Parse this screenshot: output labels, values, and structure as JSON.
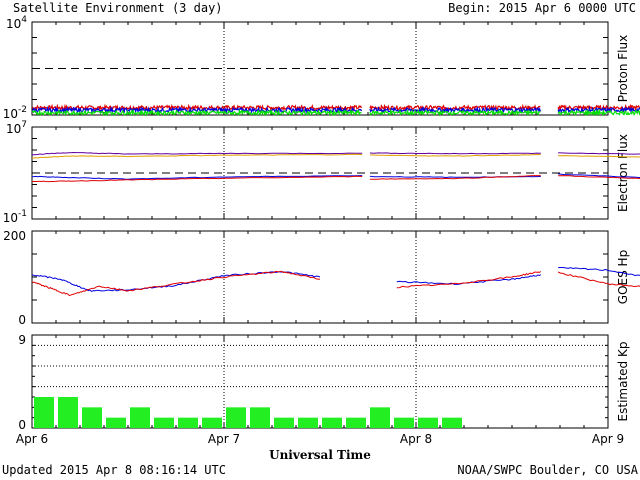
{
  "header": {
    "title": "Satellite Environment (3 day)",
    "begin": "Begin:  2015 Apr 6 0000 UTC"
  },
  "footer": {
    "updated": "Updated 2015 Apr  8 08:16:14 UTC",
    "credit": "NOAA/SWPC Boulder, CO USA"
  },
  "x_axis": {
    "label": "Universal Time",
    "ticks": [
      "Apr 6",
      "Apr 7",
      "Apr 8",
      "Apr 9"
    ]
  },
  "colors": {
    "red": "#e00000",
    "blue": "#0000e0",
    "green": "#00e000",
    "orange": "#e0a000",
    "purple": "#6000a0",
    "kp_bar": "#22ee22"
  },
  "chart_data": [
    {
      "type": "line",
      "name": "proton-flux",
      "ylabel": "Proton Flux",
      "yscale": "log",
      "ylim": [
        0.01,
        10000
      ],
      "yticks": [
        {
          "base": "10",
          "exp": "4"
        },
        {
          "base": "10",
          "exp": "-2"
        }
      ],
      "threshold": 10,
      "x_unit": "days since Apr 6 0000 UTC",
      "segments": [
        [
          0,
          1.72
        ],
        [
          1.76,
          2.65
        ],
        [
          2.74,
          3.35
        ]
      ],
      "series": [
        {
          "color": "red",
          "level": 0.03
        },
        {
          "color": "blue",
          "level": 0.021
        },
        {
          "color": "green",
          "level": 0.014
        }
      ]
    },
    {
      "type": "line",
      "name": "electron-flux",
      "ylabel": "Electron Flux",
      "yscale": "log",
      "ylim": [
        0.1,
        10000000
      ],
      "yticks": [
        {
          "base": "10",
          "exp": "7"
        },
        {
          "base": "10",
          "exp": "-1"
        }
      ],
      "threshold": 1000,
      "segments": [
        [
          0,
          1.72
        ],
        [
          1.76,
          2.65
        ],
        [
          2.74,
          3.35
        ]
      ],
      "series": [
        {
          "color": "purple",
          "points": [
            [
              0,
              40000
            ],
            [
              0.2,
              60000
            ],
            [
              0.5,
              45000
            ],
            [
              1,
              50000
            ],
            [
              1.72,
              52000
            ],
            [
              1.76,
              55000
            ],
            [
              2.2,
              48000
            ],
            [
              2.65,
              52000
            ],
            [
              2.74,
              55000
            ],
            [
              3.35,
              40000
            ]
          ]
        },
        {
          "color": "orange",
          "points": [
            [
              0,
              20000
            ],
            [
              0.2,
              30000
            ],
            [
              0.5,
              28000
            ],
            [
              1,
              35000
            ],
            [
              1.72,
              40000
            ],
            [
              1.76,
              35000
            ],
            [
              2.2,
              30000
            ],
            [
              2.65,
              40000
            ],
            [
              2.74,
              32000
            ],
            [
              3.35,
              22000
            ]
          ]
        },
        {
          "color": "blue",
          "points": [
            [
              0,
              500
            ],
            [
              0.2,
              400
            ],
            [
              0.5,
              300
            ],
            [
              1,
              450
            ],
            [
              1.72,
              600
            ],
            [
              1.76,
              500
            ],
            [
              2.2,
              420
            ],
            [
              2.65,
              500
            ],
            [
              2.74,
              800
            ],
            [
              3.35,
              300
            ]
          ]
        },
        {
          "color": "red",
          "points": [
            [
              0,
              180
            ],
            [
              0.2,
              200
            ],
            [
              0.5,
              250
            ],
            [
              1,
              350
            ],
            [
              1.72,
              500
            ],
            [
              1.76,
              300
            ],
            [
              2.2,
              330
            ],
            [
              2.65,
              600
            ],
            [
              2.74,
              600
            ],
            [
              3.35,
              250
            ]
          ]
        }
      ]
    },
    {
      "type": "line",
      "name": "goes-hp",
      "ylabel": "GOES Hp",
      "ylim": [
        0,
        200
      ],
      "yticks": [
        "200",
        "0"
      ],
      "segments": [
        [
          0,
          1.72
        ],
        [
          1.76,
          2.65
        ],
        [
          2.74,
          3.35
        ]
      ],
      "series": [
        {
          "color": "blue",
          "points": [
            [
              0,
              105
            ],
            [
              0.15,
              95
            ],
            [
              0.3,
              70
            ],
            [
              0.5,
              72
            ],
            [
              0.75,
              82
            ],
            [
              1.0,
              103
            ],
            [
              1.3,
              112
            ],
            [
              1.5,
              100
            ],
            [
              1.9,
              90
            ],
            [
              2.2,
              85
            ],
            [
              2.5,
              95
            ],
            [
              2.65,
              105
            ],
            [
              2.74,
              120
            ],
            [
              3.0,
              115
            ],
            [
              3.35,
              88
            ]
          ]
        },
        {
          "color": "red",
          "points": [
            [
              0,
              90
            ],
            [
              0.1,
              75
            ],
            [
              0.2,
              60
            ],
            [
              0.35,
              80
            ],
            [
              0.5,
              70
            ],
            [
              0.75,
              85
            ],
            [
              1.0,
              100
            ],
            [
              1.3,
              112
            ],
            [
              1.5,
              95
            ],
            [
              1.9,
              78
            ],
            [
              2.2,
              85
            ],
            [
              2.5,
              100
            ],
            [
              2.65,
              112
            ],
            [
              2.74,
              110
            ],
            [
              3.0,
              85
            ],
            [
              3.2,
              78
            ],
            [
              3.35,
              88
            ]
          ]
        }
      ]
    },
    {
      "type": "bar",
      "name": "estimated-kp",
      "ylabel": "Estimated Kp",
      "ylim": [
        0,
        9
      ],
      "yticks": [
        "9",
        "0"
      ],
      "gridlines": [
        4,
        6,
        8
      ],
      "bar_width_days": 0.125,
      "values": [
        3,
        3,
        2,
        1,
        2,
        1,
        1,
        1,
        2,
        2,
        1,
        1,
        1,
        1,
        2,
        1,
        1,
        1
      ]
    }
  ]
}
